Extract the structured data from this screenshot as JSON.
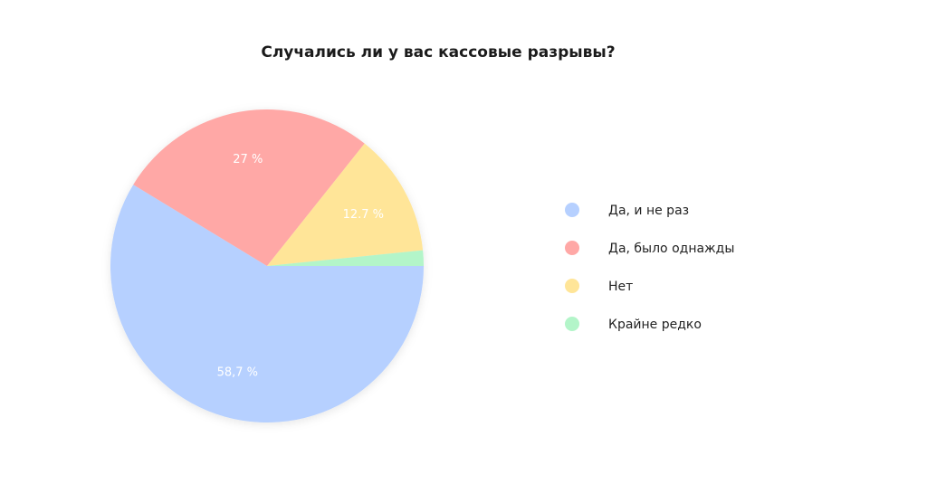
{
  "chart_data": {
    "type": "pie",
    "title": "Случались ли у вас кассовые разрывы?",
    "legend_position": "right",
    "slices": [
      {
        "label": "Да, и не раз",
        "value": 58.7,
        "display": "58,7 %",
        "color": "#b6d0ff"
      },
      {
        "label": "Да, было однажды",
        "value": 27,
        "display": "27 %",
        "color": "#ffa8a6"
      },
      {
        "label": "Нет",
        "value": 12.7,
        "display": "12.7 %",
        "color": "#ffe598"
      },
      {
        "label": "Крайне редко",
        "value": 1.6,
        "display": "",
        "color": "#b3f5c9"
      }
    ]
  }
}
